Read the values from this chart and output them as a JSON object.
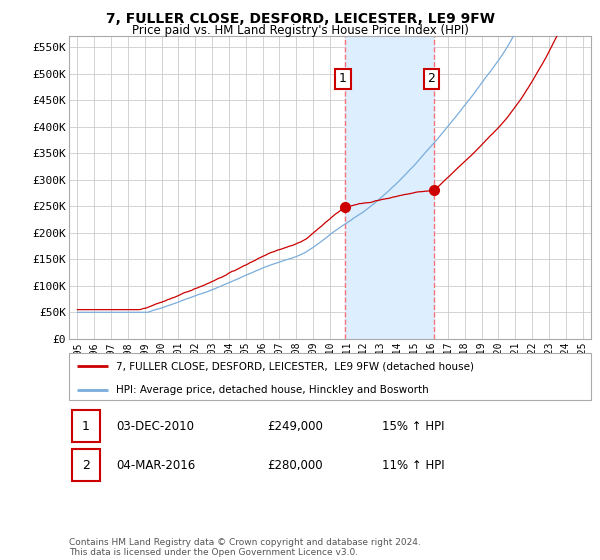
{
  "title": "7, FULLER CLOSE, DESFORD, LEICESTER, LE9 9FW",
  "subtitle": "Price paid vs. HM Land Registry's House Price Index (HPI)",
  "legend_line1": "7, FULLER CLOSE, DESFORD, LEICESTER,  LE9 9FW (detached house)",
  "legend_line2": "HPI: Average price, detached house, Hinckley and Bosworth",
  "transaction1_date": "03-DEC-2010",
  "transaction1_price": "£249,000",
  "transaction1_hpi": "15% ↑ HPI",
  "transaction2_date": "04-MAR-2016",
  "transaction2_price": "£280,000",
  "transaction2_hpi": "11% ↑ HPI",
  "footer": "Contains HM Land Registry data © Crown copyright and database right 2024.\nThis data is licensed under the Open Government Licence v3.0.",
  "marker1_x": 2010.92,
  "marker1_y": 249000,
  "marker2_x": 2016.17,
  "marker2_y": 280000,
  "vline1_x": 2010.92,
  "vline2_x": 2016.17,
  "red_color": "#cc0000",
  "blue_color": "#7aaddb",
  "highlight_color": "#ddeeff",
  "ylim_min": 0,
  "ylim_max": 570000,
  "xlim_min": 1994.5,
  "xlim_max": 2025.5,
  "yticks": [
    0,
    50000,
    100000,
    150000,
    200000,
    250000,
    300000,
    350000,
    400000,
    450000,
    500000,
    550000
  ],
  "ytick_labels": [
    "£0",
    "£50K",
    "£100K",
    "£150K",
    "£200K",
    "£250K",
    "£300K",
    "£350K",
    "£400K",
    "£450K",
    "£500K",
    "£550K"
  ],
  "xticks": [
    1995,
    1996,
    1997,
    1998,
    1999,
    2000,
    2001,
    2002,
    2003,
    2004,
    2005,
    2006,
    2007,
    2008,
    2009,
    2010,
    2011,
    2012,
    2013,
    2014,
    2015,
    2016,
    2017,
    2018,
    2019,
    2020,
    2021,
    2022,
    2023,
    2024,
    2025
  ]
}
